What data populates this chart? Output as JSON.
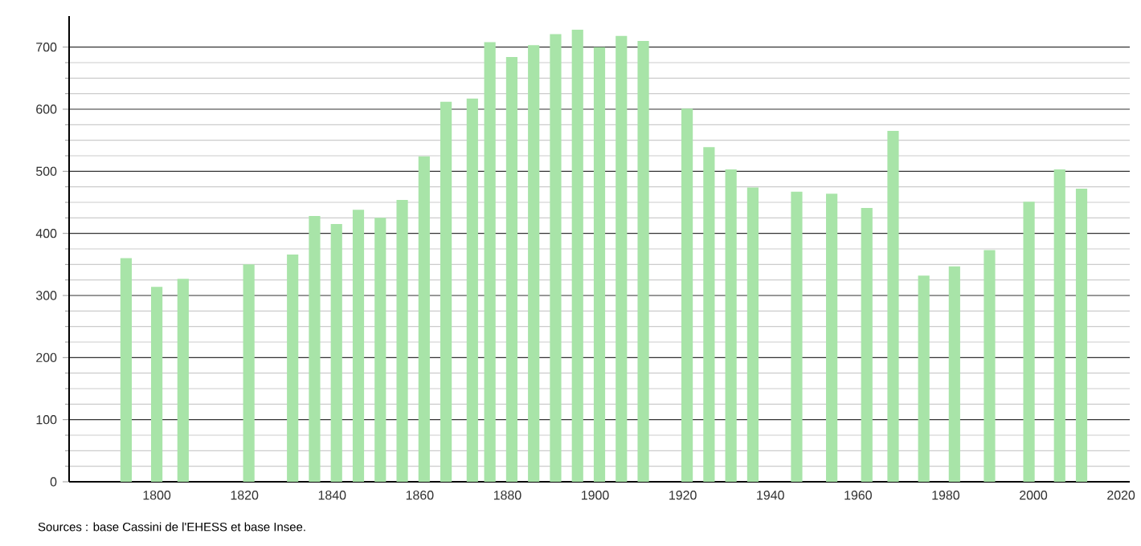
{
  "chart_data": {
    "type": "bar",
    "x": [
      1793,
      1800,
      1806,
      1821,
      1831,
      1836,
      1841,
      1846,
      1851,
      1856,
      1861,
      1866,
      1872,
      1876,
      1881,
      1886,
      1891,
      1896,
      1901,
      1906,
      1911,
      1921,
      1926,
      1931,
      1936,
      1946,
      1954,
      1962,
      1968,
      1975,
      1982,
      1990,
      1999,
      2006,
      2011
    ],
    "values": [
      360,
      314,
      327,
      350,
      366,
      428,
      415,
      438,
      425,
      454,
      524,
      612,
      617,
      708,
      684,
      703,
      721,
      728,
      700,
      718,
      710,
      601,
      539,
      503,
      474,
      467,
      464,
      441,
      565,
      332,
      347,
      373,
      451,
      503,
      472
    ],
    "color": "#a8e4a8",
    "xlim": [
      1780,
      2022
    ],
    "xticks": [
      1800,
      1820,
      1840,
      1860,
      1880,
      1900,
      1920,
      1940,
      1960,
      1980,
      2000,
      2020
    ],
    "ylim": [
      0,
      750
    ],
    "yticks": [
      0,
      100,
      200,
      300,
      400,
      500,
      600,
      700
    ],
    "grid": "y",
    "annotations": [
      "Sources : base Cassini de l'EHESS et base Insee."
    ]
  }
}
